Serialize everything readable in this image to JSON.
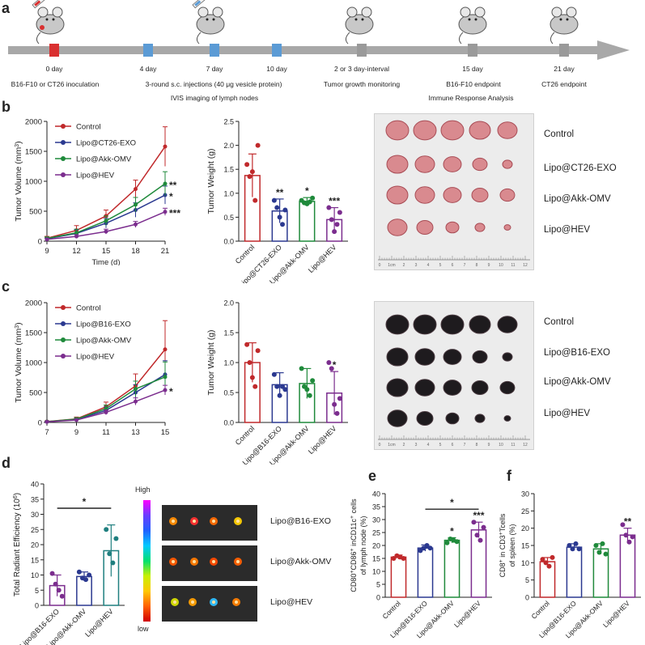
{
  "panels": {
    "a": "a",
    "b": "b",
    "c": "c",
    "d": "d",
    "e": "e",
    "f": "f"
  },
  "timeline": {
    "days": [
      {
        "label": "0 day",
        "color": "#d93030",
        "pos": 0
      },
      {
        "label": "4 day",
        "color": "#5b9bd5",
        "pos": 4
      },
      {
        "label": "7 day",
        "color": "#5b9bd5",
        "pos": 7
      },
      {
        "label": "10 day",
        "color": "#5b9bd5",
        "pos": 10
      },
      {
        "label": "",
        "color": "#9a9a9a",
        "pos": 13
      },
      {
        "label": "15 day",
        "color": "#9a9a9a",
        "pos": 15
      },
      {
        "label": "21 day",
        "color": "#9a9a9a",
        "pos": 21
      }
    ],
    "gap_label": "2 or 3 day-interval",
    "events": [
      "B16-F10 or CT26 inoculation",
      "3-round s.c. injections (40 μg vesicle protein)",
      "Tumor growth monitoring",
      "B16-F10 endpoint",
      "CT26 endpoint"
    ],
    "subevents": [
      "IVIS imaging of lymph nodes",
      "Immune Response Analysis"
    ],
    "colors": {
      "arrow": "#a8a8a8",
      "red": "#d93030",
      "blue": "#5b9bd5",
      "gray": "#9a9a9a"
    }
  },
  "series_colors": {
    "control": "#c0292b",
    "b1": "#2b3990",
    "b2": "#1f8a3b",
    "hev": "#7b2d8e"
  },
  "photo_labels_b": [
    "Control",
    "Lipo@CT26-EXO",
    "Lipo@Akk-OMV",
    "Lipo@HEV"
  ],
  "photo_labels_c": [
    "Control",
    "Lipo@B16-EXO",
    "Lipo@Akk-OMV",
    "Lipo@HEV"
  ],
  "ruler_b": [
    "0",
    "1cm",
    "2",
    "3",
    "4",
    "5",
    "6",
    "7",
    "8",
    "9",
    "10",
    "11",
    "12"
  ],
  "ruler_c": [
    "0",
    "1cm",
    "2",
    "3",
    "4",
    "5",
    "6",
    "7",
    "8",
    "9",
    "10",
    "11",
    "12"
  ],
  "ivis_labels": [
    "Lipo@B16-EXO",
    "Lipo@Akk-OMV",
    "Lipo@HEV"
  ],
  "colorbar": {
    "high": "High",
    "low": "low"
  },
  "chart_data": [
    {
      "id": "b_vol",
      "type": "line",
      "xlabel": "Time (d)",
      "ylabel": "Tumor Volume (mm³)",
      "ylabel_main": "Tumor Volume (mm",
      "ylabel_sup": "3",
      "ylabel_end": ")",
      "x": [
        9,
        12,
        15,
        18,
        21
      ],
      "xlim": [
        9,
        21
      ],
      "ylim": [
        0,
        2000
      ],
      "yticks": [
        0,
        500,
        1000,
        1500,
        2000
      ],
      "series": [
        {
          "name": "Control",
          "values": [
            50,
            180,
            420,
            870,
            1580
          ],
          "err": [
            30,
            80,
            100,
            150,
            330
          ]
        },
        {
          "name": "Lipo@CT26-EXO",
          "values": [
            40,
            130,
            300,
            520,
            770
          ],
          "err": [
            25,
            60,
            80,
            120,
            150
          ]
        },
        {
          "name": "Lipo@Akk-OMV",
          "values": [
            45,
            140,
            340,
            610,
            960
          ],
          "err": [
            25,
            60,
            80,
            120,
            200
          ]
        },
        {
          "name": "Lipo@HEV",
          "values": [
            30,
            80,
            160,
            280,
            490
          ],
          "err": [
            15,
            30,
            40,
            50,
            60
          ]
        }
      ],
      "sig": [
        "",
        "*",
        "**",
        "***"
      ]
    },
    {
      "id": "b_wt",
      "type": "bar",
      "ylabel": "Tumor Weight (g)",
      "categories": [
        "Control",
        "Lipo@CT26-EXO",
        "Lipo@Akk-OMV",
        "Lipo@HEV"
      ],
      "values": [
        1.37,
        0.63,
        0.83,
        0.45
      ],
      "err": [
        0.45,
        0.25,
        0.08,
        0.25
      ],
      "ylim": [
        0,
        2.5
      ],
      "yticks": [
        "0.0",
        "0.5",
        "1.0",
        "1.5",
        "2.0",
        "2.5"
      ],
      "points": [
        [
          1.6,
          1.35,
          1.45,
          0.85,
          2.0
        ],
        [
          0.85,
          0.7,
          0.5,
          0.35,
          0.65
        ],
        [
          0.85,
          0.8,
          0.78,
          0.82,
          0.9
        ],
        [
          0.7,
          0.45,
          0.2,
          0.35,
          0.6
        ]
      ],
      "sig": [
        "",
        "**",
        "*",
        "***"
      ]
    },
    {
      "id": "c_vol",
      "type": "line",
      "xlabel": "",
      "ylabel": "Tumor Volume (mm³)",
      "ylabel_main": "Tumor Volume (mm",
      "ylabel_sup": "3",
      "ylabel_end": ")",
      "x": [
        7,
        9,
        11,
        13,
        15
      ],
      "xlim": [
        7,
        15
      ],
      "ylim": [
        0,
        2000
      ],
      "yticks": [
        0,
        500,
        1000,
        1500,
        2000
      ],
      "series": [
        {
          "name": "Control",
          "values": [
            15,
            60,
            260,
            610,
            1220
          ],
          "err": [
            10,
            30,
            80,
            200,
            480
          ]
        },
        {
          "name": "Lipo@B16-EXO",
          "values": [
            12,
            50,
            200,
            500,
            800
          ],
          "err": [
            8,
            25,
            60,
            130,
            230
          ]
        },
        {
          "name": "Lipo@Akk-OMV",
          "values": [
            14,
            55,
            230,
            560,
            760
          ],
          "err": [
            8,
            25,
            60,
            130,
            250
          ]
        },
        {
          "name": "Lipo@HEV",
          "values": [
            10,
            40,
            170,
            350,
            540
          ],
          "err": [
            5,
            15,
            40,
            60,
            80
          ]
        }
      ],
      "sig": [
        "",
        "",
        "",
        "*"
      ]
    },
    {
      "id": "c_wt",
      "type": "bar",
      "ylabel": "Tumor Weight (g)",
      "categories": [
        "Control",
        "Lipo@B16-EXO",
        "Lipo@Akk-OMV",
        "Lipo@HEV"
      ],
      "values": [
        1.0,
        0.63,
        0.65,
        0.49
      ],
      "err": [
        0.33,
        0.2,
        0.25,
        0.36
      ],
      "ylim": [
        0,
        2.0
      ],
      "yticks": [
        "0.0",
        "0.5",
        "1.0",
        "1.5",
        "2.0"
      ],
      "points": [
        [
          1.3,
          1.0,
          0.75,
          0.6,
          1.2
        ],
        [
          0.8,
          0.6,
          0.45,
          0.6,
          0.55
        ],
        [
          0.9,
          0.6,
          0.55,
          0.45,
          0.7
        ],
        [
          1.0,
          0.9,
          0.3,
          0.15,
          0.4
        ]
      ],
      "sig": [
        "",
        "",
        "",
        "*"
      ]
    },
    {
      "id": "d",
      "type": "bar",
      "ylabel": "Total Radiant Efficiency (10⁶)",
      "ylabel_main": "Total Radiant Efficiency (10",
      "ylabel_sup": "6",
      "ylabel_end": ")",
      "categories": [
        "Lipo@B16-EXO",
        "Lipo@Akk-OMV",
        "Lipo@HEV"
      ],
      "values": [
        6.5,
        9.5,
        18
      ],
      "err": [
        3.5,
        1.5,
        8.5
      ],
      "ylim": [
        0,
        40
      ],
      "yticks": [
        0,
        5,
        10,
        15,
        20,
        25,
        30,
        35,
        40
      ],
      "points": [
        [
          10.5,
          7,
          5,
          3
        ],
        [
          11,
          9,
          8.5,
          10
        ],
        [
          25,
          17,
          14,
          22
        ]
      ],
      "sig_bar": "*"
    },
    {
      "id": "e",
      "type": "bar",
      "ylabel": "CD80⁺CD86⁺ inCD11c⁺ cells of lymph node (%)",
      "ylabel_l1_parts": [
        "CD80",
        "+",
        "CD86",
        "+",
        " inCD11c",
        "+",
        " cells"
      ],
      "ylabel_l2": "of lymph node (%)",
      "categories": [
        "Control",
        "Lipo@B16-EXO",
        "Lipo@Akk-OMV",
        "Lipo@HEV"
      ],
      "values": [
        15.5,
        19,
        22,
        26
      ],
      "err": [
        0.8,
        1.2,
        1,
        3
      ],
      "ylim": [
        0,
        40
      ],
      "yticks": [
        0,
        5,
        10,
        15,
        20,
        25,
        30,
        35,
        40
      ],
      "points": [
        [
          15,
          16,
          15.5,
          15
        ],
        [
          18,
          19,
          20,
          19
        ],
        [
          21,
          22.5,
          22,
          21.5
        ],
        [
          29,
          24,
          22,
          27
        ]
      ],
      "sig": [
        "",
        "",
        "*",
        "***"
      ],
      "sig_bar": "*"
    },
    {
      "id": "f",
      "type": "bar",
      "ylabel": "CD8⁺ in CD3⁺Tcells of spleen (%)",
      "ylabel_l1_parts": [
        "CD8",
        "+",
        " in CD3",
        "+",
        "Tcells"
      ],
      "ylabel_l2": "of spleen (%)",
      "categories": [
        "Control",
        "Lipo@B16-EXO",
        "Lipo@Akk-OMV",
        "Lipo@HEV"
      ],
      "values": [
        10.3,
        14.5,
        14,
        18
      ],
      "err": [
        1.2,
        1,
        1.5,
        2
      ],
      "ylim": [
        0,
        30
      ],
      "yticks": [
        0,
        5,
        10,
        15,
        20,
        25,
        30
      ],
      "points": [
        [
          11,
          10,
          9,
          11.5
        ],
        [
          15,
          14,
          15.5,
          14
        ],
        [
          15,
          13,
          15.5,
          12.5
        ],
        [
          21,
          18,
          16,
          17.5
        ]
      ],
      "sig": [
        "",
        "",
        "",
        "**"
      ]
    }
  ]
}
